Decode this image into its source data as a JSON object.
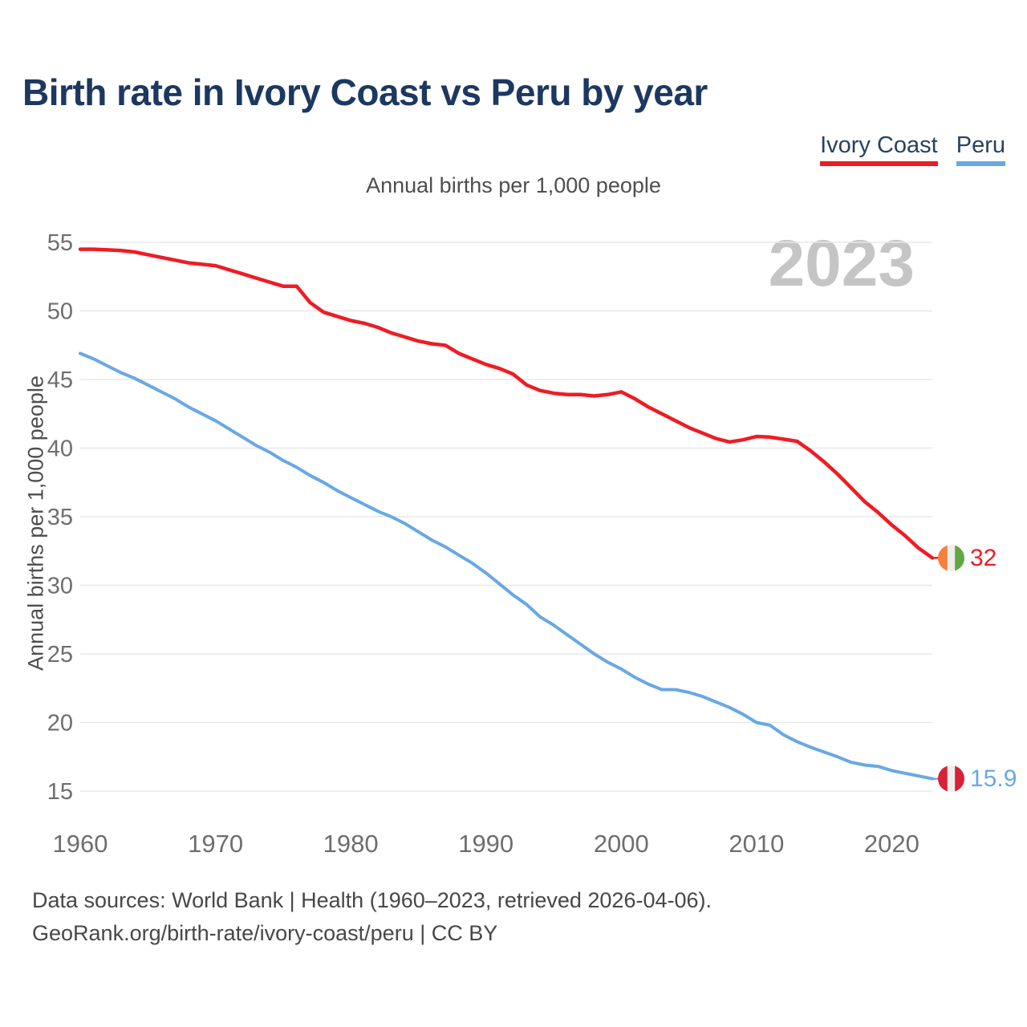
{
  "header": {
    "title": "Birth rate in Ivory Coast vs Peru by year",
    "subtitle": "Annual births per 1,000 people"
  },
  "legend": {
    "items": [
      {
        "label": "Ivory Coast",
        "color": "#ee1c25"
      },
      {
        "label": "Peru",
        "color": "#68a8e4"
      }
    ]
  },
  "watermark": {
    "text": "2023"
  },
  "end_labels": {
    "ivory_coast": {
      "value": "32",
      "flag": "ivory-coast-flag",
      "colors": [
        "#f5813c",
        "#efedea",
        "#62a744"
      ]
    },
    "peru": {
      "value": "15.9",
      "flag": "peru-flag",
      "colors": [
        "#d92038",
        "#efedea",
        "#d92038"
      ]
    }
  },
  "footer": {
    "line1": "Data sources: World Bank | Health (1960–2023, retrieved 2026-04-06).",
    "line2": "GeoRank.org/birth-rate/ivory-coast/peru | CC BY"
  },
  "chart_data": {
    "type": "line",
    "title": "Birth rate in Ivory Coast vs Peru by year",
    "subtitle": "Annual births per 1,000 people",
    "xlabel": "",
    "ylabel": "Annual births per 1,000 people",
    "x_range": [
      1960,
      2023
    ],
    "ylim": [
      15,
      55
    ],
    "yticks": [
      15,
      20,
      25,
      30,
      35,
      40,
      45,
      50,
      55
    ],
    "xticks": [
      1960,
      1970,
      1980,
      1990,
      2000,
      2010,
      2020
    ],
    "grid": "horizontal",
    "legend_position": "top-right",
    "x": [
      1960,
      1961,
      1962,
      1963,
      1964,
      1965,
      1966,
      1967,
      1968,
      1969,
      1970,
      1971,
      1972,
      1973,
      1974,
      1975,
      1976,
      1977,
      1978,
      1979,
      1980,
      1981,
      1982,
      1983,
      1984,
      1985,
      1986,
      1987,
      1988,
      1989,
      1990,
      1991,
      1992,
      1993,
      1994,
      1995,
      1996,
      1997,
      1998,
      1999,
      2000,
      2001,
      2002,
      2003,
      2004,
      2005,
      2006,
      2007,
      2008,
      2009,
      2010,
      2011,
      2012,
      2013,
      2014,
      2015,
      2016,
      2017,
      2018,
      2019,
      2020,
      2021,
      2022,
      2023
    ],
    "series": [
      {
        "name": "Ivory Coast",
        "color": "#ee1c25",
        "width": 4.5,
        "end_label": "32",
        "values": [
          54.5,
          54.5,
          54.45,
          54.4,
          54.3,
          54.1,
          53.9,
          53.7,
          53.5,
          53.4,
          53.3,
          53.0,
          52.7,
          52.4,
          52.1,
          51.8,
          51.8,
          50.6,
          49.9,
          49.6,
          49.3,
          49.1,
          48.8,
          48.4,
          48.1,
          47.8,
          47.6,
          47.5,
          46.9,
          46.5,
          46.1,
          45.8,
          45.4,
          44.6,
          44.2,
          44.0,
          43.9,
          43.9,
          43.8,
          43.9,
          44.1,
          43.6,
          43.0,
          42.5,
          42.0,
          41.5,
          41.1,
          40.7,
          40.45,
          40.6,
          40.85,
          40.8,
          40.65,
          40.5,
          39.8,
          39.0,
          38.1,
          37.1,
          36.1,
          35.3,
          34.4,
          33.6,
          32.7,
          32.0
        ]
      },
      {
        "name": "Peru",
        "color": "#68a8e4",
        "width": 4,
        "end_label": "15.9",
        "values": [
          46.9,
          46.5,
          46.0,
          45.5,
          45.1,
          44.6,
          44.1,
          43.6,
          43.0,
          42.5,
          42.0,
          41.4,
          40.8,
          40.2,
          39.7,
          39.1,
          38.6,
          38.0,
          37.5,
          36.9,
          36.4,
          35.9,
          35.4,
          35.0,
          34.5,
          33.9,
          33.3,
          32.8,
          32.2,
          31.6,
          30.9,
          30.1,
          29.3,
          28.6,
          27.7,
          27.1,
          26.4,
          25.7,
          25.0,
          24.4,
          23.9,
          23.3,
          22.8,
          22.4,
          22.4,
          22.2,
          21.9,
          21.5,
          21.1,
          20.6,
          20.0,
          19.8,
          19.1,
          18.6,
          18.2,
          17.85,
          17.5,
          17.1,
          16.9,
          16.8,
          16.5,
          16.3,
          16.1,
          15.9
        ]
      }
    ]
  }
}
